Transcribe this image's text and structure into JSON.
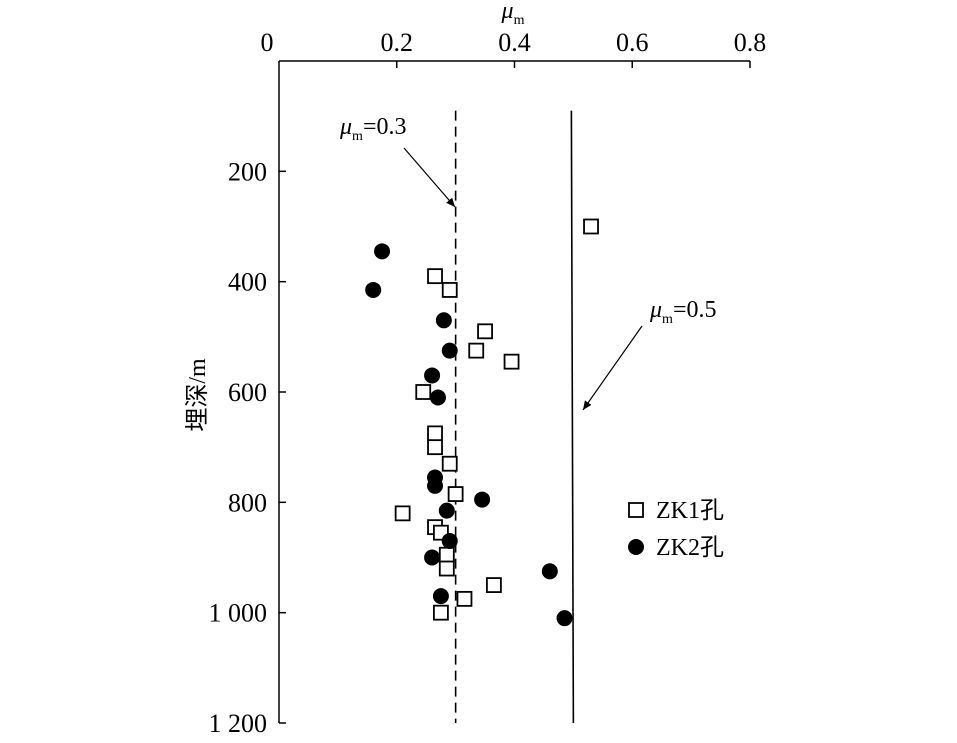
{
  "chart_data": {
    "type": "scatter",
    "xlabel": "μ",
    "xlabel_sub": "m",
    "ylabel": "埋深/m",
    "xlim": [
      0,
      0.8
    ],
    "ylim": [
      0,
      1200
    ],
    "x_axis_position": "top",
    "y_inverted": true,
    "x_ticks": [
      {
        "value": 0,
        "label": "0"
      },
      {
        "value": 0.2,
        "label": "0.2"
      },
      {
        "value": 0.4,
        "label": "0.4"
      },
      {
        "value": 0.6,
        "label": "0.6"
      },
      {
        "value": 0.8,
        "label": "0.8"
      }
    ],
    "y_ticks": [
      {
        "value": 200,
        "label": "200"
      },
      {
        "value": 400,
        "label": "400"
      },
      {
        "value": 600,
        "label": "600"
      },
      {
        "value": 800,
        "label": "800"
      },
      {
        "value": 1000,
        "label": "1 000"
      },
      {
        "value": 1200,
        "label": "1 200"
      }
    ],
    "grid": false,
    "legend_position": "right",
    "series": [
      {
        "name": "ZK1孔",
        "marker": "open-square",
        "color": "#000000",
        "points": [
          {
            "x": 0.53,
            "y": 300
          },
          {
            "x": 0.265,
            "y": 390
          },
          {
            "x": 0.29,
            "y": 415
          },
          {
            "x": 0.35,
            "y": 490
          },
          {
            "x": 0.335,
            "y": 525
          },
          {
            "x": 0.395,
            "y": 545
          },
          {
            "x": 0.245,
            "y": 600
          },
          {
            "x": 0.265,
            "y": 675
          },
          {
            "x": 0.265,
            "y": 700
          },
          {
            "x": 0.29,
            "y": 730
          },
          {
            "x": 0.3,
            "y": 785
          },
          {
            "x": 0.21,
            "y": 820
          },
          {
            "x": 0.265,
            "y": 845
          },
          {
            "x": 0.275,
            "y": 855
          },
          {
            "x": 0.285,
            "y": 895
          },
          {
            "x": 0.285,
            "y": 920
          },
          {
            "x": 0.365,
            "y": 950
          },
          {
            "x": 0.315,
            "y": 975
          },
          {
            "x": 0.275,
            "y": 1000
          }
        ]
      },
      {
        "name": "ZK2孔",
        "marker": "filled-circle",
        "color": "#000000",
        "points": [
          {
            "x": 0.175,
            "y": 345
          },
          {
            "x": 0.16,
            "y": 415
          },
          {
            "x": 0.28,
            "y": 470
          },
          {
            "x": 0.29,
            "y": 525
          },
          {
            "x": 0.26,
            "y": 570
          },
          {
            "x": 0.27,
            "y": 610
          },
          {
            "x": 0.265,
            "y": 755
          },
          {
            "x": 0.265,
            "y": 770
          },
          {
            "x": 0.345,
            "y": 795
          },
          {
            "x": 0.285,
            "y": 815
          },
          {
            "x": 0.29,
            "y": 870
          },
          {
            "x": 0.26,
            "y": 900
          },
          {
            "x": 0.46,
            "y": 925
          },
          {
            "x": 0.275,
            "y": 970
          },
          {
            "x": 0.485,
            "y": 1010
          }
        ]
      }
    ],
    "reference_lines": [
      {
        "x": 0.3,
        "style": "dashed",
        "y_from": 90,
        "y_to": 1200,
        "label_prefix": "μ",
        "label_sub": "m",
        "label_suffix": "=0.3"
      },
      {
        "x": 0.5,
        "style": "solid",
        "y_from": 90,
        "y_to": 1200,
        "label_prefix": "μ",
        "label_sub": "m",
        "label_suffix": "=0.5"
      }
    ]
  }
}
